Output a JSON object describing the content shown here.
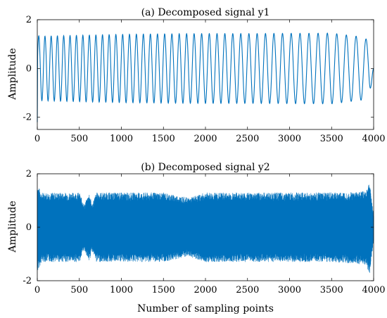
{
  "chart_data": [
    {
      "type": "line",
      "title": "(a) Decomposed signal y1",
      "xlabel": "",
      "ylabel": "Amplitude",
      "xlim": [
        0,
        4000
      ],
      "ylim": [
        -2.5,
        2
      ],
      "xticks": [
        0,
        500,
        1000,
        1500,
        2000,
        2500,
        3000,
        3500,
        4000
      ],
      "yticks": [
        -2,
        0,
        2
      ],
      "xtick_labels": [
        "0",
        "500",
        "1000",
        "1500",
        "2000",
        "2500",
        "3000",
        "3500",
        "4000"
      ],
      "ytick_labels": [
        "-2",
        "0",
        "2"
      ],
      "grid": false,
      "line_color": "#0072BD",
      "series": [
        {
          "cycles": 44,
          "envelope_x": [
            0,
            20,
            500,
            1000,
            1500,
            2000,
            2500,
            3000,
            3500,
            3850,
            3950,
            4000
          ],
          "envelope_y": [
            1.5,
            1.32,
            1.36,
            1.4,
            1.42,
            1.43,
            1.43,
            1.44,
            1.45,
            1.3,
            1.15,
            0.0
          ]
        }
      ]
    },
    {
      "type": "line",
      "title": "(b) Decomposed signal y2",
      "xlabel": "Number of sampling points",
      "ylabel": "Amplitude",
      "xlim": [
        0,
        4000
      ],
      "ylim": [
        -2,
        2
      ],
      "xticks": [
        0,
        500,
        1000,
        1500,
        2000,
        2500,
        3000,
        3500,
        4000
      ],
      "yticks": [
        -2,
        0,
        2
      ],
      "xtick_labels": [
        "0",
        "500",
        "1000",
        "1500",
        "2000",
        "2500",
        "3000",
        "3500",
        "4000"
      ],
      "ytick_labels": [
        "-2",
        "0",
        "2"
      ],
      "grid": false,
      "line_color": "#0072BD",
      "series": [
        {
          "envelope_x": [
            0,
            50,
            500,
            560,
            620,
            650,
            700,
            1000,
            1500,
            1800,
            2000,
            2500,
            3000,
            3500,
            3900,
            3950,
            4000
          ],
          "upper": [
            1.6,
            1.3,
            1.3,
            0.85,
            1.3,
            0.85,
            1.3,
            1.3,
            1.3,
            1.1,
            1.3,
            1.3,
            1.3,
            1.3,
            1.35,
            1.7,
            0.5
          ],
          "lower": [
            -1.7,
            -1.3,
            -1.3,
            -0.85,
            -1.3,
            -0.85,
            -1.3,
            -1.3,
            -1.3,
            -1.1,
            -1.3,
            -1.3,
            -1.3,
            -1.3,
            -1.4,
            -1.8,
            -0.5
          ]
        }
      ]
    }
  ]
}
